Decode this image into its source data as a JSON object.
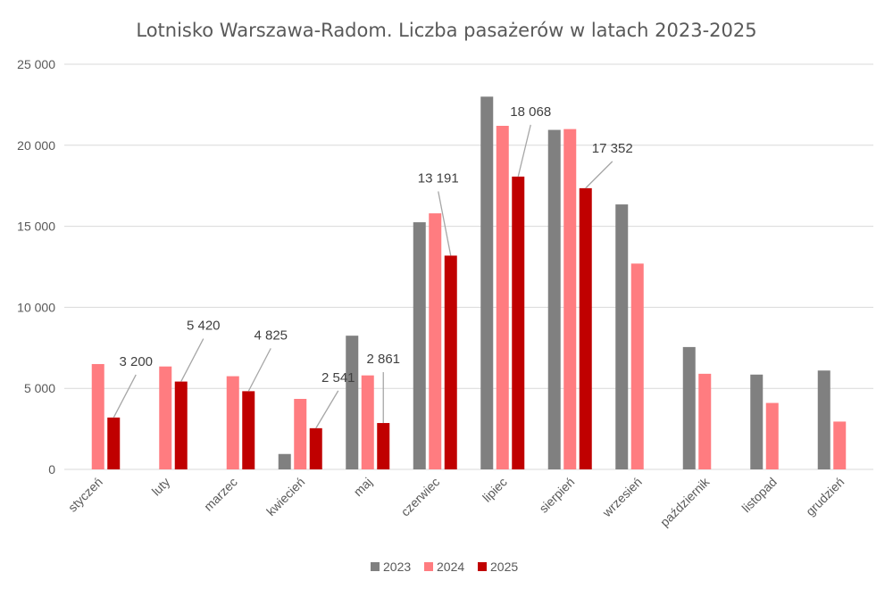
{
  "chart_data": {
    "type": "bar",
    "title": "Lotnisko Warszawa-Radom. Liczba pasażerów w latach 2023-2025",
    "xlabel": "",
    "ylabel": "",
    "ylim": [
      0,
      25000
    ],
    "y_ticks": [
      0,
      5000,
      10000,
      15000,
      20000,
      25000
    ],
    "y_tick_labels": [
      "0",
      "5 000",
      "10 000",
      "15 000",
      "20 000",
      "25 000"
    ],
    "grid": true,
    "legend_position": "bottom",
    "categories": [
      "styczeń",
      "luty",
      "marzec",
      "kwiecień",
      "maj",
      "czerwiec",
      "lipiec",
      "sierpień",
      "wrzesień",
      "październik",
      "listopad",
      "grudzień"
    ],
    "series": [
      {
        "name": "2023",
        "color": "#808080",
        "values": [
          null,
          null,
          null,
          950,
          8250,
          15250,
          23000,
          20950,
          16350,
          7550,
          5850,
          6100
        ]
      },
      {
        "name": "2024",
        "color": "#ff7c80",
        "values": [
          6500,
          6350,
          5750,
          4350,
          5800,
          15800,
          21200,
          21000,
          12700,
          5900,
          4100,
          2950
        ]
      },
      {
        "name": "2025",
        "color": "#c00000",
        "values": [
          3200,
          5420,
          4825,
          2541,
          2861,
          13191,
          18068,
          17352,
          null,
          null,
          null,
          null
        ]
      }
    ],
    "data_labels": {
      "series": "2025",
      "text": [
        "3 200",
        "5 420",
        "4 825",
        "2 541",
        "2 861",
        "13 191",
        "18 068",
        "17 352"
      ]
    }
  }
}
